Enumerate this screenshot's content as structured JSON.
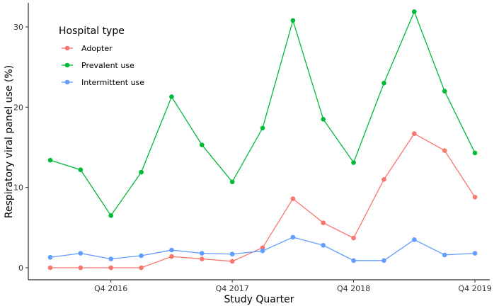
{
  "chart_data": {
    "type": "line",
    "xlabel": "Study Quarter",
    "ylabel": "Respiratory viral panel use (%)",
    "x": [
      "Q2 2016",
      "Q3 2016",
      "Q4 2016",
      "Q1 2017",
      "Q2 2017",
      "Q3 2017",
      "Q4 2017",
      "Q1 2018",
      "Q2 2018",
      "Q3 2018",
      "Q4 2018",
      "Q1 2019",
      "Q2 2019",
      "Q3 2019",
      "Q4 2019"
    ],
    "x_tick_labels": [
      "Q4 2016",
      "Q4 2017",
      "Q4 2018",
      "Q4 2019"
    ],
    "x_ticks_at": [
      "Q4 2016",
      "Q4 2017",
      "Q4 2018",
      "Q4 2019"
    ],
    "ylim": [
      -1.5,
      33
    ],
    "y_ticks": [
      0,
      10,
      20,
      30
    ],
    "grid": false,
    "legend": {
      "title": "Hospital type",
      "placement": "top-left"
    },
    "series": [
      {
        "name": "Adopter",
        "color": "#F8766D",
        "values": [
          0,
          0,
          0,
          0,
          1.4,
          1.1,
          0.8,
          2.5,
          8.6,
          5.6,
          3.7,
          11.0,
          16.7,
          14.6,
          8.8
        ]
      },
      {
        "name": "Prevalent use",
        "color": "#00BA38",
        "values": [
          13.4,
          12.2,
          6.5,
          11.9,
          21.3,
          15.3,
          10.7,
          17.4,
          30.8,
          18.5,
          13.1,
          23.0,
          31.9,
          22.0,
          14.3
        ]
      },
      {
        "name": "Intermittent use",
        "color": "#619CFF",
        "values": [
          1.3,
          1.8,
          1.1,
          1.5,
          2.2,
          1.8,
          1.7,
          2.1,
          3.8,
          2.8,
          0.9,
          0.9,
          3.5,
          1.6,
          1.8
        ]
      }
    ]
  }
}
